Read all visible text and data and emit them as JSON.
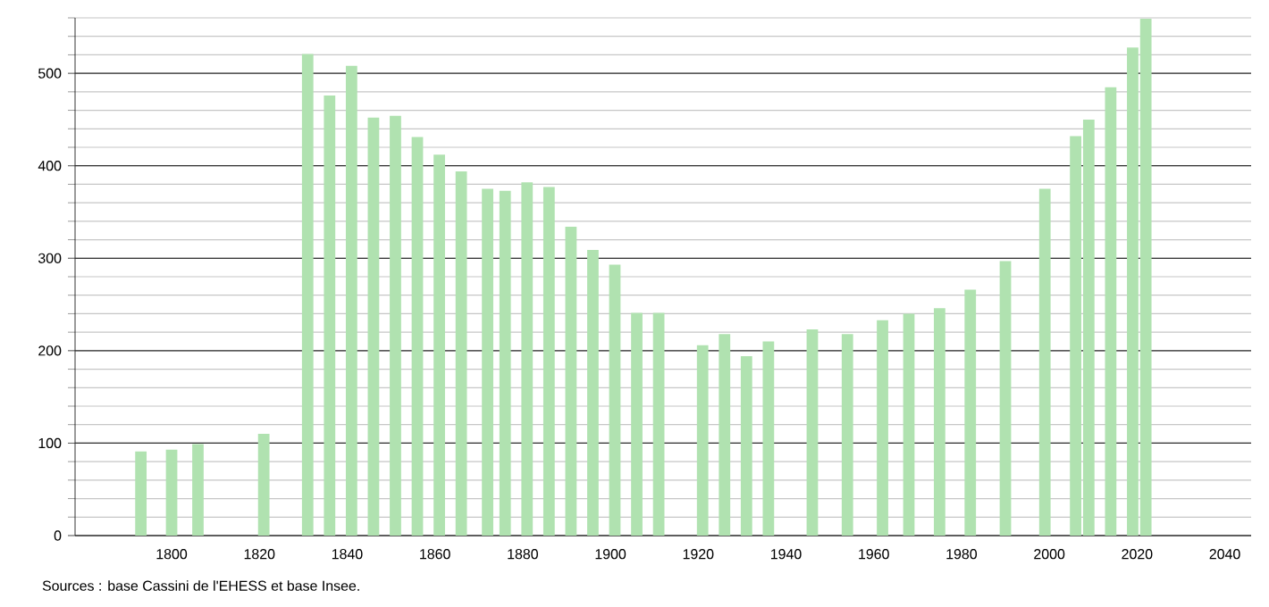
{
  "chart_data": {
    "type": "bar",
    "x": [
      1793,
      1800,
      1806,
      1821,
      1831,
      1836,
      1841,
      1846,
      1851,
      1856,
      1861,
      1866,
      1872,
      1876,
      1881,
      1886,
      1891,
      1896,
      1901,
      1906,
      1911,
      1921,
      1926,
      1931,
      1936,
      1946,
      1954,
      1962,
      1968,
      1975,
      1982,
      1990,
      1999,
      2006,
      2009,
      2014,
      2019,
      2022
    ],
    "values": [
      91,
      93,
      99,
      110,
      521,
      476,
      508,
      452,
      454,
      431,
      412,
      394,
      375,
      373,
      382,
      377,
      334,
      309,
      293,
      241,
      241,
      206,
      218,
      194,
      210,
      223,
      218,
      233,
      240,
      246,
      266,
      297,
      375,
      432,
      450,
      485,
      528,
      559
    ],
    "color": "#b0e2b0",
    "xlim": [
      1778,
      2046
    ],
    "xticks": [
      1800,
      1820,
      1840,
      1860,
      1880,
      1900,
      1920,
      1940,
      1960,
      1980,
      2000,
      2020,
      2040
    ],
    "ylim": [
      0,
      560
    ],
    "yticks": [
      0,
      {
        "value": 20,
        "label": null
      },
      {
        "value": 40,
        "label": null
      },
      {
        "value": 60,
        "label": null
      },
      {
        "value": 80,
        "label": null
      },
      100,
      {
        "value": 120,
        "label": null
      },
      {
        "value": 140,
        "label": null
      },
      {
        "value": 160,
        "label": null
      },
      {
        "value": 180,
        "label": null
      },
      200,
      {
        "value": 220,
        "label": null
      },
      {
        "value": 240,
        "label": null
      },
      {
        "value": 260,
        "label": null
      },
      {
        "value": 280,
        "label": null
      },
      300,
      {
        "value": 320,
        "label": null
      },
      {
        "value": 340,
        "label": null
      },
      {
        "value": 360,
        "label": null
      },
      {
        "value": 380,
        "label": null
      },
      400,
      {
        "value": 420,
        "label": null
      },
      {
        "value": 440,
        "label": null
      },
      {
        "value": 460,
        "label": null
      },
      {
        "value": 480,
        "label": null
      },
      500,
      {
        "value": 520,
        "label": null
      },
      {
        "value": 540,
        "label": null
      },
      {
        "value": 560,
        "label": null
      }
    ],
    "grid": "y",
    "annotations": [
      "Sources : base Cassini de l'EHESS et base Insee."
    ]
  }
}
